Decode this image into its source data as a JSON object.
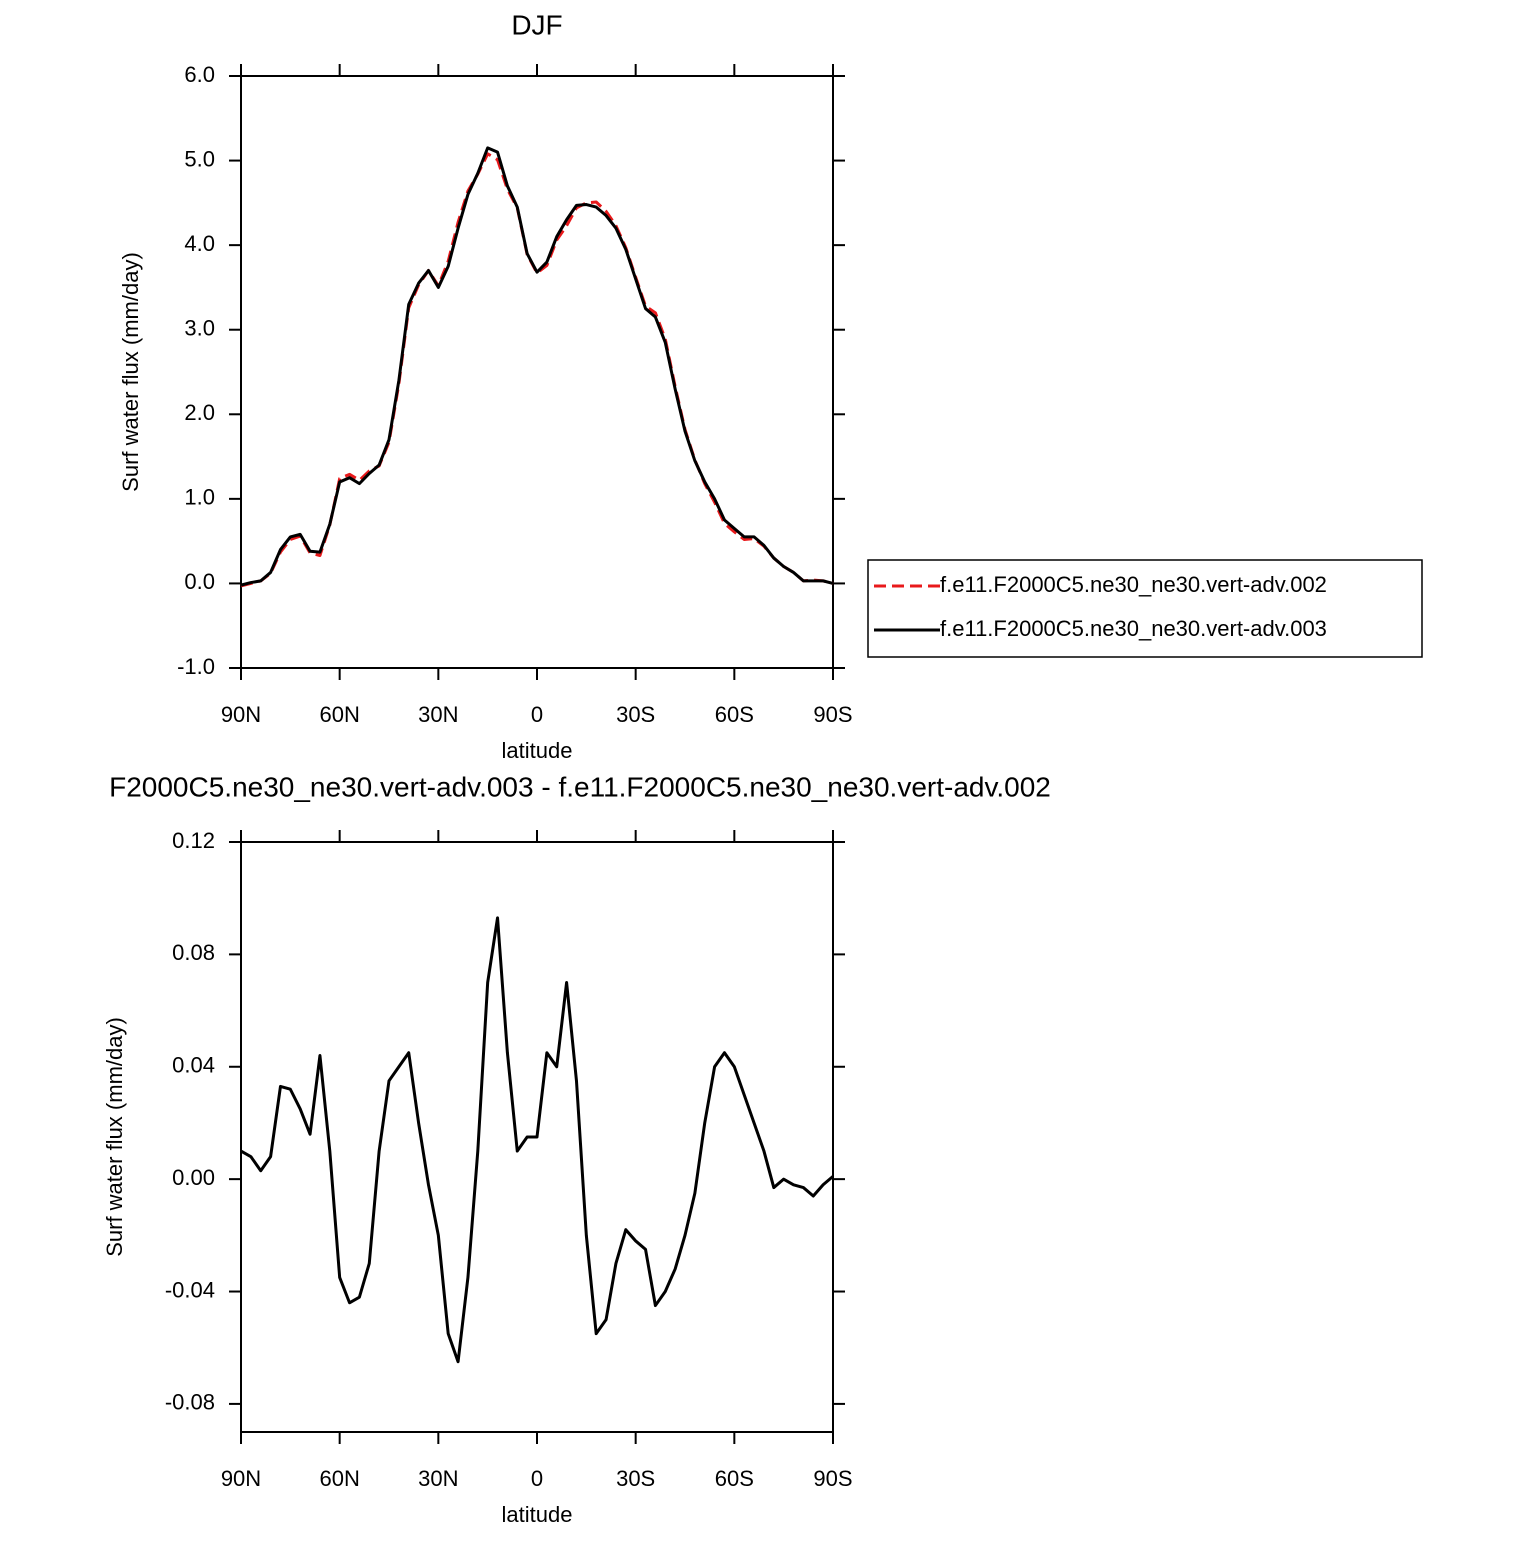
{
  "chart_data": [
    {
      "type": "line",
      "title": "DJF",
      "xlabel": "latitude",
      "ylabel": "Surf water flux (mm/day)",
      "x": [
        90,
        87,
        84,
        81,
        78,
        75,
        72,
        69,
        66,
        63,
        60,
        57,
        54,
        51,
        48,
        45,
        42,
        39,
        36,
        33,
        30,
        27,
        24,
        21,
        18,
        15,
        12,
        9,
        6,
        3,
        0,
        -3,
        -6,
        -9,
        -12,
        -15,
        -18,
        -21,
        -24,
        -27,
        -30,
        -33,
        -36,
        -39,
        -42,
        -45,
        -48,
        -51,
        -54,
        -57,
        -60,
        -63,
        -66,
        -69,
        -72,
        -75,
        -78,
        -81,
        -84,
        -87,
        -90
      ],
      "series": [
        {
          "name": "f.e11.F2000C5.ne30_ne30.vert-adv.002",
          "color": "#e8191b",
          "linestyle": "dashed",
          "values": [
            -0.03,
            0.0,
            0.03,
            0.12,
            0.37,
            0.52,
            0.56,
            0.36,
            0.33,
            0.69,
            1.24,
            1.29,
            1.22,
            1.33,
            1.39,
            1.67,
            2.36,
            3.26,
            3.53,
            3.7,
            3.52,
            3.81,
            4.27,
            4.64,
            4.84,
            5.08,
            5.01,
            4.66,
            4.44,
            3.89,
            3.67,
            3.76,
            4.06,
            4.23,
            4.44,
            4.5,
            4.51,
            4.4,
            4.23,
            3.97,
            3.62,
            3.28,
            3.2,
            2.89,
            2.33,
            1.82,
            1.46,
            1.18,
            0.96,
            0.71,
            0.61,
            0.52,
            0.53,
            0.44,
            0.3,
            0.2,
            0.13,
            0.03,
            0.04,
            0.03,
            0.0
          ]
        },
        {
          "name": "f.e11.F2000C5.ne30_ne30.vert-adv.003",
          "color": "#000000",
          "linestyle": "solid",
          "values": [
            -0.02,
            0.01,
            0.03,
            0.13,
            0.4,
            0.55,
            0.58,
            0.38,
            0.37,
            0.7,
            1.2,
            1.25,
            1.18,
            1.3,
            1.4,
            1.7,
            2.4,
            3.3,
            3.55,
            3.7,
            3.5,
            3.75,
            4.2,
            4.6,
            4.85,
            5.15,
            5.1,
            4.7,
            4.45,
            3.9,
            3.68,
            3.8,
            4.1,
            4.3,
            4.47,
            4.48,
            4.45,
            4.35,
            4.2,
            3.95,
            3.6,
            3.25,
            3.15,
            2.85,
            2.3,
            1.8,
            1.45,
            1.2,
            1.0,
            0.75,
            0.65,
            0.55,
            0.55,
            0.45,
            0.3,
            0.2,
            0.13,
            0.03,
            0.03,
            0.03,
            0.0
          ]
        }
      ],
      "xlim": [
        90,
        -90
      ],
      "xticks": [
        {
          "value": 90,
          "label": "90N"
        },
        {
          "value": 60,
          "label": "60N"
        },
        {
          "value": 30,
          "label": "30N"
        },
        0,
        {
          "value": -30,
          "label": "30S"
        },
        {
          "value": -60,
          "label": "60S"
        },
        {
          "value": -90,
          "label": "90S"
        }
      ],
      "ylim": [
        -1,
        6
      ],
      "yticks": [
        {
          "value": -1,
          "label": "-1.0"
        },
        {
          "value": 0,
          "label": "0.0"
        },
        {
          "value": 1,
          "label": "1.0"
        },
        {
          "value": 2,
          "label": "2.0"
        },
        {
          "value": 3,
          "label": "3.0"
        },
        {
          "value": 4,
          "label": "4.0"
        },
        {
          "value": 5,
          "label": "5.0"
        },
        {
          "value": 6,
          "label": "6.0"
        }
      ],
      "legend": "right"
    },
    {
      "type": "line",
      "title": "F2000C5.ne30_ne30.vert-adv.003 - f.e11.F2000C5.ne30_ne30.vert-adv.002",
      "xlabel": "latitude",
      "ylabel": "Surf water flux (mm/day)",
      "x": [
        90,
        87,
        84,
        81,
        78,
        75,
        72,
        69,
        66,
        63,
        60,
        57,
        54,
        51,
        48,
        45,
        42,
        39,
        36,
        33,
        30,
        27,
        24,
        21,
        18,
        15,
        12,
        9,
        6,
        3,
        0,
        -3,
        -6,
        -9,
        -12,
        -15,
        -18,
        -21,
        -24,
        -27,
        -30,
        -33,
        -36,
        -39,
        -42,
        -45,
        -48,
        -51,
        -54,
        -57,
        -60,
        -63,
        -66,
        -69,
        -72,
        -75,
        -78,
        -81,
        -84,
        -87,
        -90
      ],
      "series": [
        {
          "color": "#000000",
          "linestyle": "solid",
          "values": [
            0.01,
            0.008,
            0.003,
            0.008,
            0.033,
            0.032,
            0.025,
            0.016,
            0.044,
            0.01,
            -0.035,
            -0.044,
            -0.042,
            -0.03,
            0.01,
            0.035,
            0.04,
            0.045,
            0.02,
            -0.002,
            -0.02,
            -0.055,
            -0.065,
            -0.035,
            0.01,
            0.07,
            0.093,
            0.045,
            0.01,
            0.015,
            0.015,
            0.045,
            0.04,
            0.07,
            0.035,
            -0.02,
            -0.055,
            -0.05,
            -0.03,
            -0.018,
            -0.022,
            -0.025,
            -0.045,
            -0.04,
            -0.032,
            -0.02,
            -0.005,
            0.02,
            0.04,
            0.045,
            0.04,
            0.03,
            0.02,
            0.01,
            -0.003,
            0.0,
            -0.002,
            -0.003,
            -0.006,
            -0.002,
            0.001
          ]
        }
      ],
      "xlim": [
        90,
        -90
      ],
      "xticks": [
        {
          "value": 90,
          "label": "90N"
        },
        {
          "value": 60,
          "label": "60N"
        },
        {
          "value": 30,
          "label": "30N"
        },
        0,
        {
          "value": -30,
          "label": "30S"
        },
        {
          "value": -60,
          "label": "60S"
        },
        {
          "value": -90,
          "label": "90S"
        }
      ],
      "ylim": [
        -0.09,
        0.12
      ],
      "yticks": [
        -0.08,
        -0.04,
        {
          "value": 0,
          "label": "0.00"
        },
        0.04,
        0.08,
        0.12
      ]
    }
  ]
}
